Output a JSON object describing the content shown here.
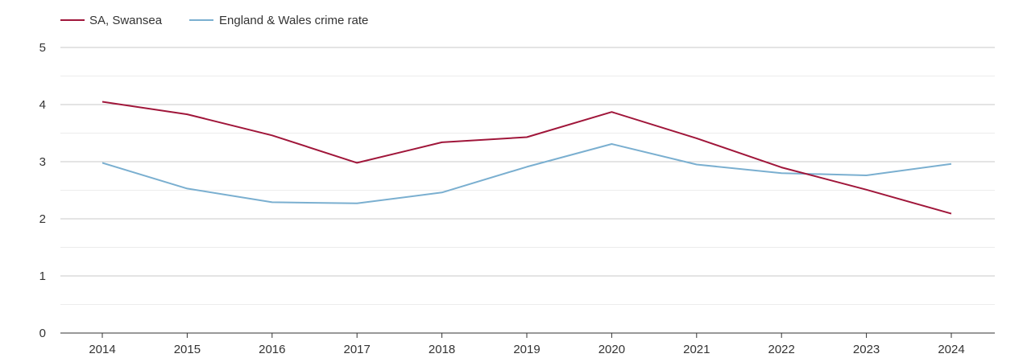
{
  "chart_data": {
    "type": "line",
    "title": "",
    "xlabel": "",
    "ylabel": "",
    "categories": [
      "2014",
      "2015",
      "2016",
      "2017",
      "2018",
      "2019",
      "2020",
      "2021",
      "2022",
      "2023",
      "2024"
    ],
    "ylim": [
      0,
      5
    ],
    "yticks": [
      "0",
      "1",
      "2",
      "3",
      "4",
      "5"
    ],
    "grid": true,
    "legend_position": "top-left",
    "series": [
      {
        "name": "SA, Swansea",
        "color": "#a0163a",
        "values": [
          4.05,
          3.83,
          3.46,
          2.98,
          3.34,
          3.43,
          3.87,
          3.41,
          2.9,
          2.51,
          2.09
        ]
      },
      {
        "name": "England & Wales crime rate",
        "color": "#7aafd0",
        "values": [
          2.98,
          2.53,
          2.29,
          2.27,
          2.46,
          2.91,
          3.31,
          2.95,
          2.8,
          2.76,
          2.96
        ]
      }
    ]
  }
}
